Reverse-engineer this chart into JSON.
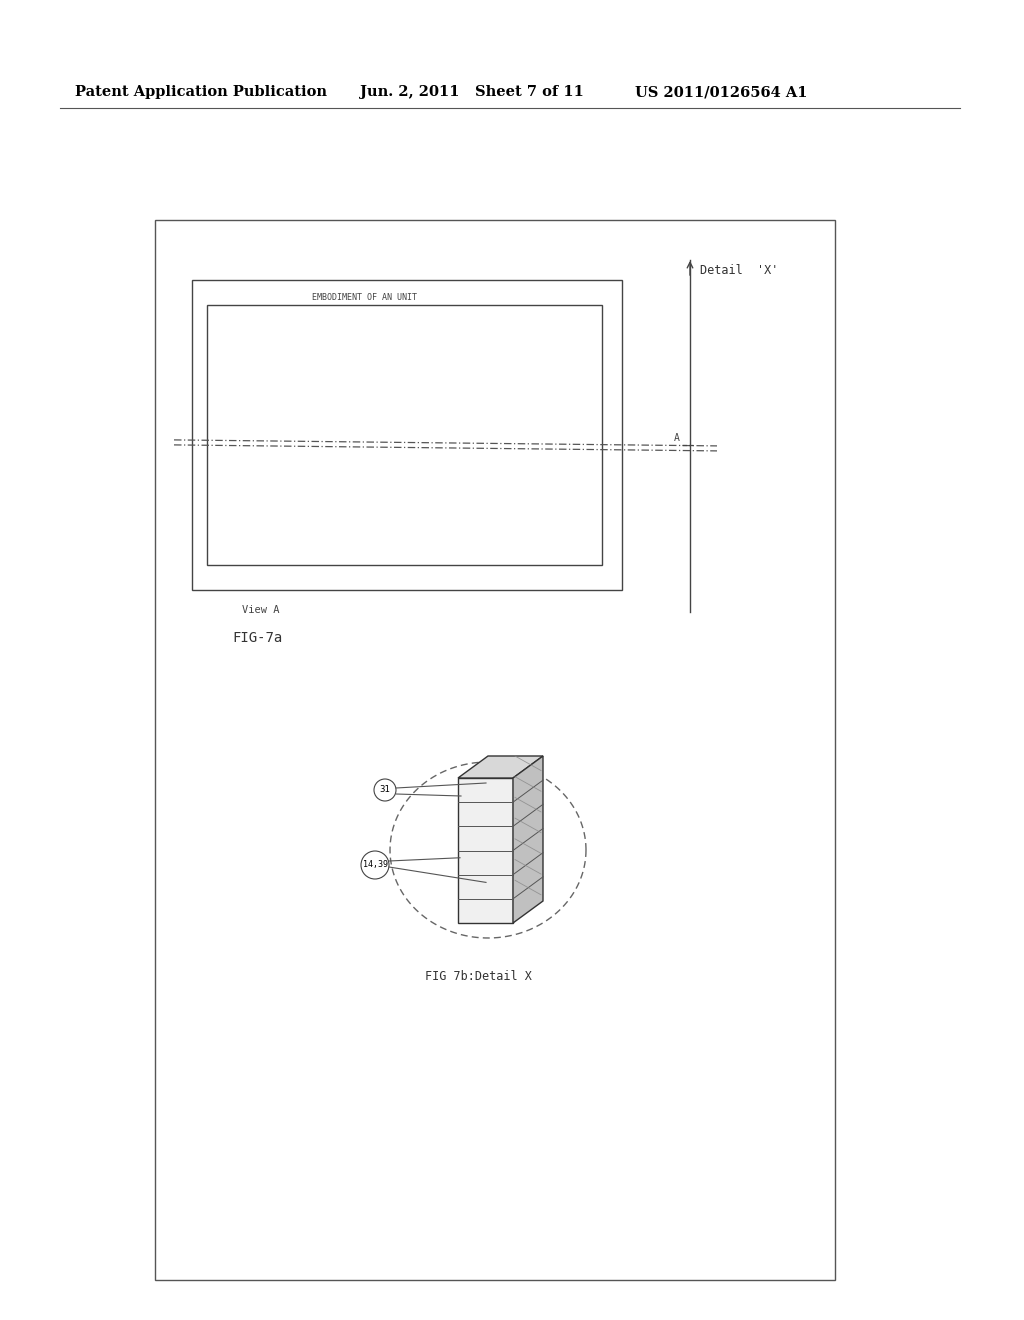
{
  "bg_color": "#ffffff",
  "header_text": "Patent Application Publication",
  "header_date": "Jun. 2, 2011",
  "header_sheet": "Sheet 7 of 11",
  "header_patent": "US 2011/0126564 A1",
  "fig7a_label": "FIG-7a",
  "fig7b_label": "FIG 7b:Detail X",
  "view_a_label": "View A",
  "embodiment_label": "EMBODIMENT OF AN UNIT",
  "detail_x_label": "Detail  'X'",
  "ref_31": "31",
  "ref_14_39": "14,39"
}
